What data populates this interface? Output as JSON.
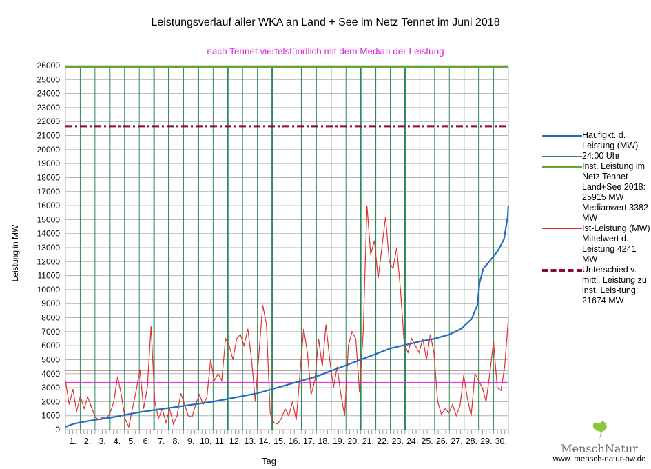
{
  "chart_data": {
    "type": "line",
    "title": "Leistungsverlauf aller WKA an Land + See im Netz Tennet im Juni 2018",
    "subtitle": "nach Tennet viertelstündlich mit dem Median der Leistung",
    "xlabel": "Tag",
    "ylabel": "Leistung in MW",
    "ylim": [
      0,
      26000
    ],
    "ystep": 1000,
    "xlim": [
      0,
      30
    ],
    "xticks": [
      "1.",
      "2.",
      "3.",
      "4.",
      "5.",
      "6.",
      "7.",
      "8.",
      "9.",
      "10.",
      "11.",
      "12.",
      "13.",
      "14.",
      "15.",
      "16.",
      "17.",
      "18.",
      "19.",
      "20.",
      "21.",
      "22.",
      "23.",
      "24.",
      "25.",
      "26.",
      "27.",
      "28.",
      "29.",
      "30."
    ],
    "ist_leistung": [
      3500,
      1800,
      2900,
      1300,
      2400,
      1500,
      2300,
      1600,
      900,
      700,
      900,
      800,
      1200,
      2000,
      3800,
      2500,
      800,
      200,
      1500,
      2800,
      4300,
      1500,
      3000,
      7400,
      2000,
      800,
      1500,
      500,
      1500,
      400,
      1000,
      2600,
      1800,
      1000,
      900,
      1800,
      2500,
      1800,
      2300,
      5000,
      3500,
      4000,
      3500,
      6500,
      6000,
      5000,
      6500,
      6800,
      6000,
      7200,
      5000,
      2000,
      5500,
      8900,
      7500,
      1200,
      500,
      400,
      800,
      1500,
      1000,
      2000,
      700,
      4000,
      7200,
      5500,
      2500,
      3500,
      6500,
      4500,
      7500,
      5000,
      3000,
      4500,
      2500,
      1000,
      6000,
      7000,
      6500,
      2700,
      7000,
      16000,
      12500,
      13500,
      10800,
      13000,
      15200,
      12000,
      11500,
      13000,
      10000,
      6200,
      5500,
      6500,
      6000,
      5500,
      6500,
      5000,
      6800,
      5500,
      2000,
      1100,
      1500,
      1200,
      1800,
      1000,
      1700,
      3900,
      2200,
      1000,
      4000,
      3500,
      3000,
      2000,
      4000,
      6300,
      3000,
      2800,
      4500,
      8000
    ],
    "haeufigkeit": [
      [
        0,
        200
      ],
      [
        0.5,
        400
      ],
      [
        1,
        520
      ],
      [
        2,
        700
      ],
      [
        3,
        850
      ],
      [
        5,
        1250
      ],
      [
        7,
        1550
      ],
      [
        10,
        2000
      ],
      [
        13,
        2600
      ],
      [
        15,
        3200
      ],
      [
        17,
        3800
      ],
      [
        18,
        4200
      ],
      [
        20,
        5000
      ],
      [
        21,
        5400
      ],
      [
        22,
        5800
      ],
      [
        23,
        6050
      ],
      [
        24,
        6300
      ],
      [
        25,
        6500
      ],
      [
        26,
        6800
      ],
      [
        26.8,
        7200
      ],
      [
        27.5,
        7900
      ],
      [
        27.9,
        8900
      ],
      [
        28.05,
        10500
      ],
      [
        28.3,
        11500
      ],
      [
        28.7,
        12000
      ],
      [
        29.3,
        12800
      ],
      [
        29.7,
        13600
      ],
      [
        29.95,
        15200
      ],
      [
        30,
        16000
      ]
    ],
    "inst_leistung": 25915,
    "median": 3382,
    "mittelwert": 4241,
    "unterschied": 21674,
    "median_marker_day": 15,
    "thick_day_lines": [
      3,
      6,
      7,
      9,
      11,
      14,
      16,
      20,
      21,
      23,
      28
    ],
    "legend": [
      {
        "label": "Häufigkt. d. Leistung (MW)",
        "color": "#1f6fc0"
      },
      {
        "label": "24:00 Uhr",
        "color": "#2e8b57"
      },
      {
        "label": "Inst. Leistung im Netz Tennet Land+See 2018: 25915 MW",
        "color": "#5fa832"
      },
      {
        "label": "Medianwert 3382 MW",
        "color": "#e020e0"
      },
      {
        "label": "Ist-Leistung (MW)",
        "color": "#e03030"
      },
      {
        "label": "Mittelwert d. Leistung 4241 MW",
        "color": "#5a0a28"
      },
      {
        "label": "Unterschied v. mittl. Leistung zu inst. Leis-tung: 21674 MW",
        "color": "#8b0a3a"
      }
    ]
  },
  "logo": {
    "name": "MenschNatur",
    "url": "www. mensch-natur-bw.de"
  }
}
